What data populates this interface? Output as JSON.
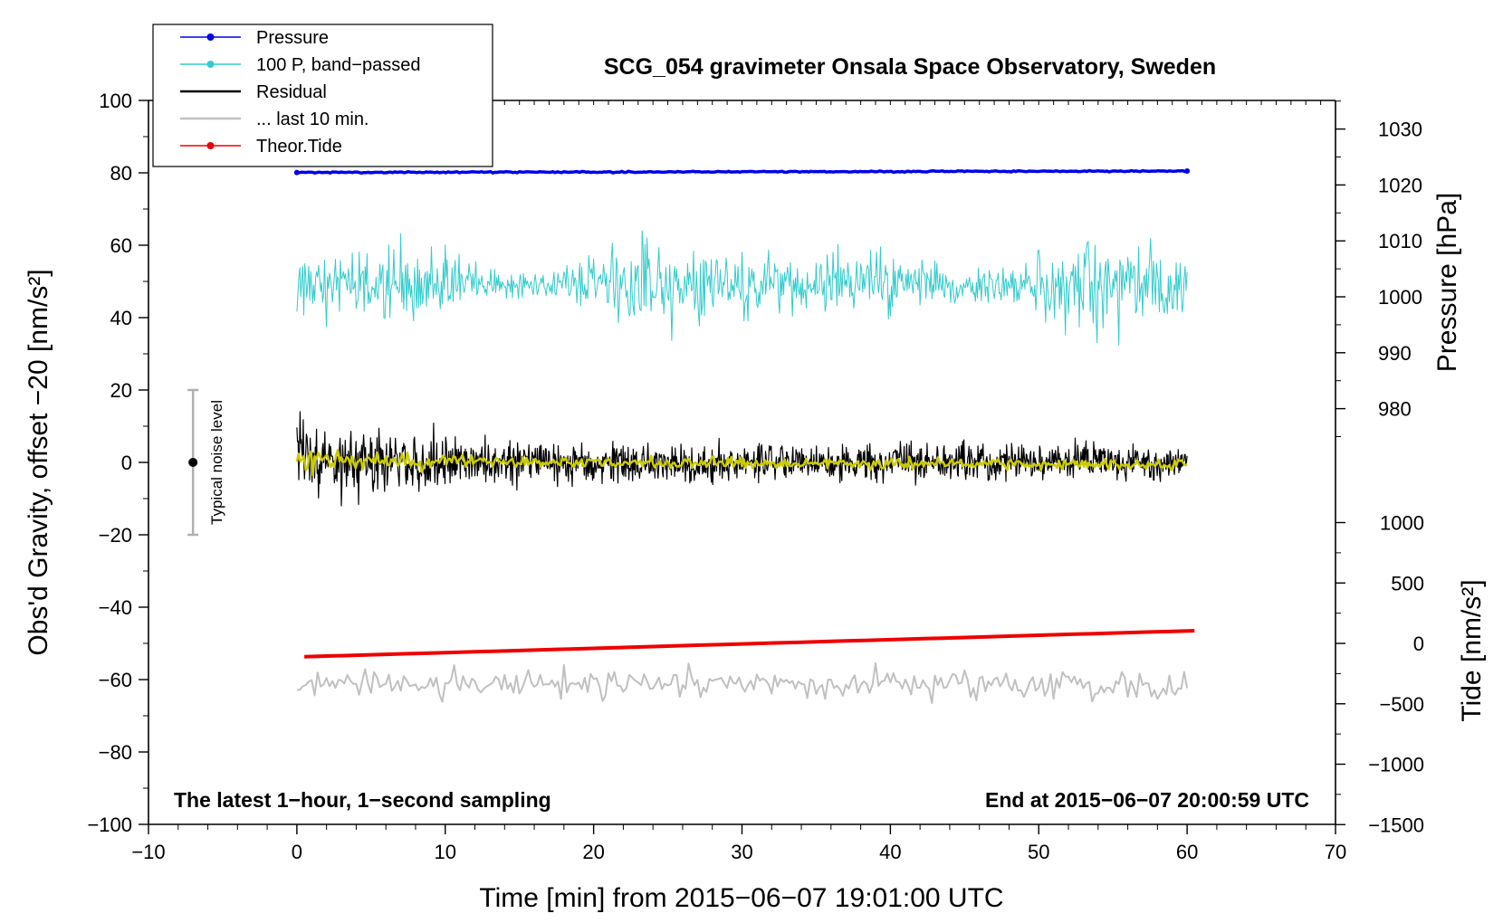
{
  "chart_data": {
    "type": "line",
    "title": "SCG_054 gravimeter Onsala Space Observatory, Sweden",
    "xlabel": "Time [min] from 2015−06−07 19:01:00 UTC",
    "ylabel_left": "Obs'd Gravity, offset −20 [nm/s²]",
    "ylabel_right_top": "Pressure [hPa]",
    "ylabel_right_bottom": "Tide [nm/s²]",
    "xlim": [
      -10,
      70
    ],
    "ylim_left": [
      -100,
      100
    ],
    "pressure_axis": {
      "ticks": [
        980,
        990,
        1000,
        1010,
        1020,
        1030
      ],
      "tick_labels": [
        "980",
        "990",
        "1000",
        "1010",
        "1020",
        "1030"
      ]
    },
    "tide_axis": {
      "ticks": [
        -1500,
        -1000,
        -500,
        0,
        500,
        1000
      ],
      "tick_labels": [
        "−1500",
        "−1000",
        "−500",
        "0",
        "500",
        "1000"
      ]
    },
    "x_ticks": [
      -10,
      0,
      10,
      20,
      30,
      40,
      50,
      60,
      70
    ],
    "x_tick_labels": [
      "−10",
      "0",
      "10",
      "20",
      "30",
      "40",
      "50",
      "60",
      "70"
    ],
    "y_ticks": [
      -100,
      -80,
      -60,
      -40,
      -20,
      0,
      20,
      40,
      60,
      80,
      100
    ],
    "y_tick_labels": [
      "−100",
      "−80",
      "−60",
      "−40",
      "−20",
      "0",
      "20",
      "40",
      "60",
      "80",
      "100"
    ],
    "legend": [
      {
        "label": "Pressure",
        "color": "#0000ee",
        "marker": true
      },
      {
        "label": "100 P, band−passed",
        "color": "#33cccc",
        "marker": true
      },
      {
        "label": "Residual",
        "color": "#000000",
        "marker": false
      },
      {
        "label": "... last 10 min.",
        "color": "#c0c0c0",
        "marker": false
      },
      {
        "label": "Theor.Tide",
        "color": "#ee0000",
        "marker": true
      }
    ],
    "series": [
      {
        "name": "Pressure",
        "color": "#0000ee",
        "x_range": [
          0,
          60
        ],
        "y_start": 80.1,
        "y_end": 80.5,
        "noise_amp": 0.3
      },
      {
        "name": "100 P, band−passed",
        "color": "#33cccc",
        "x_range": [
          0,
          60
        ],
        "y_center": 49,
        "noise_amp": 6,
        "y_min": 28,
        "y_max": 64
      },
      {
        "name": "Residual",
        "color": "#000000",
        "x_range": [
          0,
          60
        ],
        "y_center": 0,
        "noise_amp_start": 8,
        "noise_amp_end": 3.5,
        "y_min": -12,
        "y_max": 14
      },
      {
        "name": "Residual smoothed",
        "color": "#cccc00",
        "x_range": [
          0,
          60
        ],
        "y_center": 0.3,
        "noise_amp": 1
      },
      {
        "name": "... last 10 min.",
        "color": "#c0c0c0",
        "x_range": [
          0,
          60
        ],
        "y_center": -61.5,
        "noise_amp": 2.8,
        "y_min": -69,
        "y_max": -55
      },
      {
        "name": "Theor.Tide",
        "color": "#ee0000",
        "x_range": [
          0.5,
          60.5
        ],
        "y_start": -53.7,
        "y_end": -46.5
      }
    ],
    "noise_level": {
      "label": "Typical noise level",
      "x": -7,
      "y_low": -20,
      "y_high": 20,
      "center": 0
    },
    "annotations": {
      "bottom_left": "The latest 1−hour, 1−second sampling",
      "bottom_right": "End at 2015−06−07 20:00:59 UTC"
    }
  }
}
